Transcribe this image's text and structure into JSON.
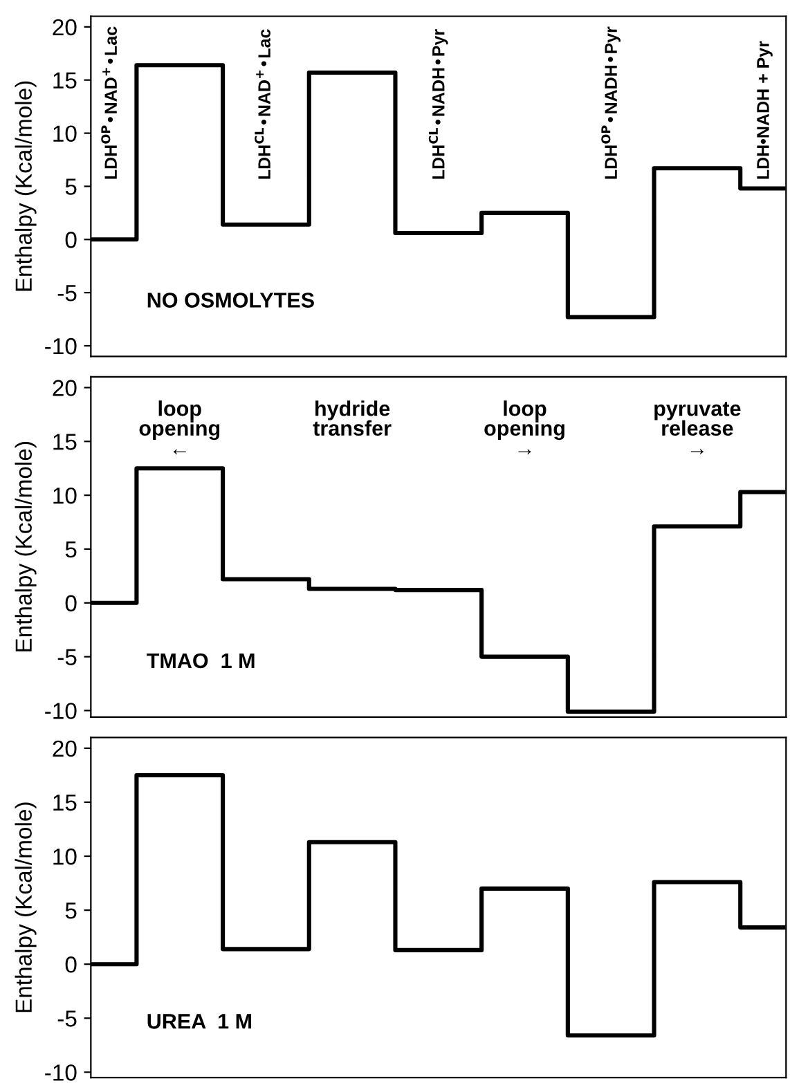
{
  "chart_data": [
    {
      "type": "step",
      "ylabel": "Enthalpy (Kcal/mole)",
      "categories": [
        null,
        null,
        null,
        null,
        null,
        null,
        null,
        null,
        null
      ],
      "series": [
        {
          "color": "#000000",
          "values": [
            0,
            16.4,
            1.4,
            15.7,
            0.6,
            2.5,
            -7.3,
            6.7,
            4.8
          ]
        }
      ],
      "ylim": [
        -11,
        21
      ],
      "yticks": [
        -10,
        -5,
        0,
        5,
        10,
        15,
        20
      ],
      "tick_labels": "y",
      "grid": false,
      "legend": false,
      "annotations": [
        "LDH$^{OP}$•NAD$^{+}$•Lac",
        "LDH$^{CL}$•NAD$^{+}$•Lac",
        "LDH$^{CL}$•NADH•Pyr",
        "LDH$^{OP}$•NADH•Pyr",
        "LDH•NADH + Pyr",
        "NO OSMOLYTES"
      ]
    },
    {
      "type": "step",
      "ylabel": "Enthalpy (Kcal/mole)",
      "categories": [
        null,
        null,
        null,
        null,
        null,
        null,
        null,
        null,
        null
      ],
      "series": [
        {
          "color": "#000000",
          "values": [
            0,
            12.5,
            2.2,
            1.3,
            1.2,
            -5,
            -10.1,
            7.1,
            10.3
          ]
        }
      ],
      "ylim": [
        -10.6,
        21
      ],
      "yticks": [
        -10,
        -5,
        0,
        5,
        10,
        15,
        20
      ],
      "tick_labels": "y",
      "grid": false,
      "legend": false,
      "annotations": [
        "loop\nopening\n←",
        "hydride\ntransfer",
        "loop\nopening\n→",
        "pyruvate\nrelease\n→",
        "TMAO  1 M"
      ]
    },
    {
      "type": "step",
      "ylabel": "Enthalpy (Kcal/mole)",
      "categories": [
        null,
        null,
        null,
        null,
        null,
        null,
        null,
        null,
        null
      ],
      "series": [
        {
          "color": "#000000",
          "values": [
            0,
            17.5,
            1.4,
            11.3,
            1.3,
            7.0,
            -6.6,
            7.6,
            3.4
          ]
        }
      ],
      "ylim": [
        -10.5,
        21
      ],
      "yticks": [
        -10,
        -5,
        0,
        5,
        10,
        15,
        20
      ],
      "tick_labels": "y",
      "grid": false,
      "legend": false,
      "annotations": [
        "UREA  1 M"
      ]
    }
  ]
}
